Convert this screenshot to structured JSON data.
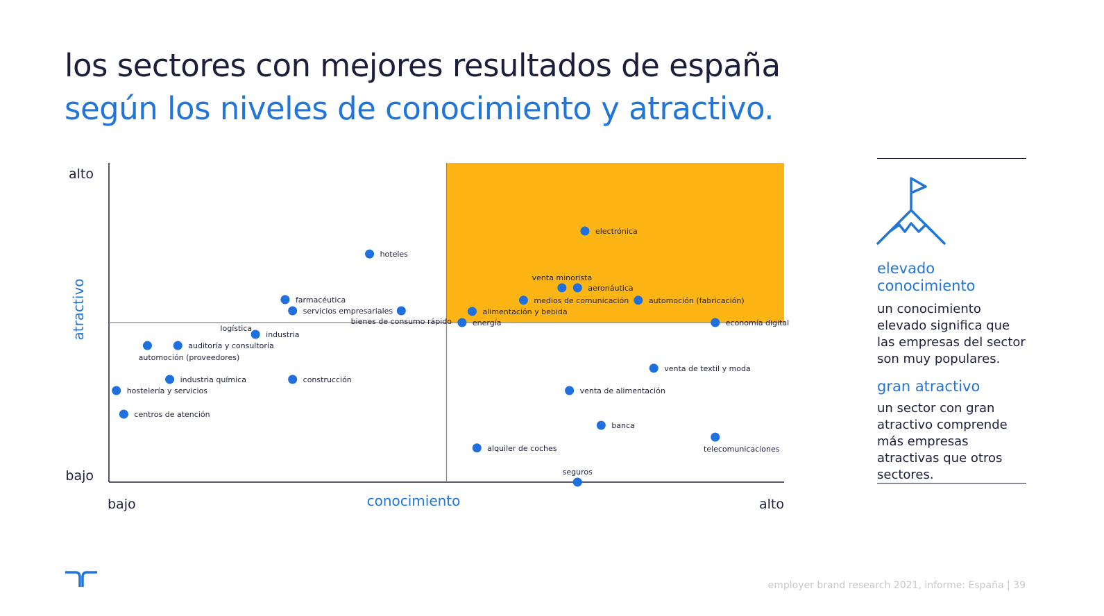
{
  "title": {
    "line1": "los sectores con mejores resultados de españa",
    "line2": "según los niveles de conocimiento y atractivo."
  },
  "colors": {
    "navy": "#1b1f3b",
    "blue": "#2175d9",
    "highlight": "#fdb515",
    "dot": "#1f6fdc"
  },
  "chart_data": {
    "type": "scatter",
    "xlabel": "conocimiento",
    "ylabel": "atractivo",
    "x_ticks": {
      "low": "bajo",
      "high": "alto"
    },
    "y_ticks": {
      "low": "bajo",
      "high": "alto"
    },
    "xlim": [
      0,
      100
    ],
    "ylim": [
      0,
      100
    ],
    "quadrant_split": {
      "x": 50,
      "y": 50
    },
    "highlighted_quadrant": "top-right",
    "grid": false,
    "points": [
      {
        "label": "electrónica",
        "x": 70.5,
        "y": 78.7,
        "label_pos": "right"
      },
      {
        "label": "hoteles",
        "x": 38.6,
        "y": 71.5,
        "label_pos": "right"
      },
      {
        "label": "venta minorista",
        "x": 67.1,
        "y": 60.9,
        "label_pos": "above"
      },
      {
        "label": "aeronáutica",
        "x": 69.4,
        "y": 60.9,
        "label_pos": "right"
      },
      {
        "label": "farmacéutica",
        "x": 26.1,
        "y": 57.2,
        "label_pos": "right"
      },
      {
        "label": "medios de comunicación",
        "x": 61.4,
        "y": 57.0,
        "label_pos": "right"
      },
      {
        "label": "automoción (fabricación)",
        "x": 78.4,
        "y": 57.0,
        "label_pos": "right"
      },
      {
        "label": "servicios empresariales",
        "x": 27.2,
        "y": 53.7,
        "label_pos": "right"
      },
      {
        "label": "bienes de consumo rápido",
        "x": 43.3,
        "y": 53.7,
        "label_pos": "right"
      },
      {
        "label": "alimentación y bebida",
        "x": 53.8,
        "y": 53.5,
        "label_pos": "right"
      },
      {
        "label": "energía",
        "x": 52.3,
        "y": 50.0,
        "label_pos": "right"
      },
      {
        "label": "economía digital",
        "x": 89.8,
        "y": 50.0,
        "label_pos": "right"
      },
      {
        "label": "logística",
        "x": 21.7,
        "y": 46.5,
        "label_pos": "above-left"
      },
      {
        "label": "industria",
        "x": 21.7,
        "y": 46.3,
        "label_pos": "right"
      },
      {
        "label": "auditoría y consultoría",
        "x": 10.2,
        "y": 42.8,
        "label_pos": "right"
      },
      {
        "label": "automoción (proveedores)",
        "x": 5.7,
        "y": 42.8,
        "label_pos": "below"
      },
      {
        "label": "venta de textil y moda",
        "x": 80.7,
        "y": 35.7,
        "label_pos": "right"
      },
      {
        "label": "industria química",
        "x": 9.0,
        "y": 32.2,
        "label_pos": "right"
      },
      {
        "label": "construcción",
        "x": 27.2,
        "y": 32.2,
        "label_pos": "right"
      },
      {
        "label": "hostelería y servicios",
        "x": 1.1,
        "y": 28.7,
        "label_pos": "right"
      },
      {
        "label": "venta de alimentación",
        "x": 68.2,
        "y": 28.7,
        "label_pos": "right"
      },
      {
        "label": "centros de atención",
        "x": 2.2,
        "y": 21.3,
        "label_pos": "right"
      },
      {
        "label": "banca",
        "x": 72.9,
        "y": 17.8,
        "label_pos": "right"
      },
      {
        "label": "telecomunicaciones",
        "x": 89.8,
        "y": 14.1,
        "label_pos": "below"
      },
      {
        "label": "alquiler de coches",
        "x": 54.5,
        "y": 10.7,
        "label_pos": "right"
      },
      {
        "label": "seguros",
        "x": 69.4,
        "y": 0.0,
        "label_pos": "above"
      }
    ]
  },
  "sidebar": {
    "icon": "mountain-flag-icon",
    "heading1": "elevado conocimiento",
    "body1": "un conocimiento elevado significa que las empresas del sector son muy populares.",
    "heading2": "gran atractivo",
    "body2": "un sector con gran atractivo comprende más empresas atractivas que otros sectores."
  },
  "footer": {
    "logo": "randstad",
    "text": "employer brand research 2021, informe: España  |  39"
  }
}
